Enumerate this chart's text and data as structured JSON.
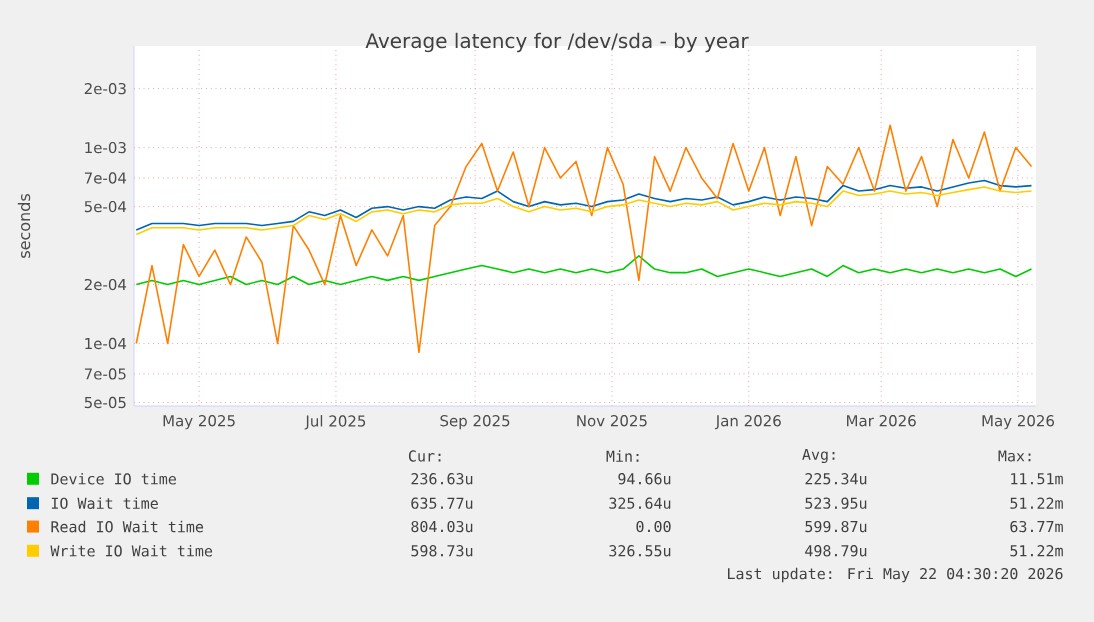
{
  "chart_data": {
    "type": "line",
    "title": "Average latency for /dev/sda - by year",
    "ylabel": "seconds",
    "log": true,
    "grid": true,
    "legend": "bottom",
    "marker": "none",
    "line_style": "solid",
    "xlim": [
      "2025-04-17",
      "2026-05-24"
    ],
    "ylim": [
      4.8e-05,
      0.0033
    ],
    "xticks": [
      {
        "value": "2025-05-16",
        "label": "May 2025"
      },
      {
        "value": "2025-07-16",
        "label": "Jul 2025"
      },
      {
        "value": "2025-09-16",
        "label": "Sep 2025"
      },
      {
        "value": "2025-11-16",
        "label": "Nov 2025"
      },
      {
        "value": "2026-01-16",
        "label": "Jan 2026"
      },
      {
        "value": "2026-03-16",
        "label": "Mar 2026"
      },
      {
        "value": "2026-05-16",
        "label": "May 2026"
      }
    ],
    "yticks": [
      {
        "value": 5e-05,
        "label": "5e-05"
      },
      {
        "value": 7e-05,
        "label": "7e-05"
      },
      {
        "value": 0.0001,
        "label": "1e-04"
      },
      {
        "value": 0.0002,
        "label": "2e-04"
      },
      {
        "value": 0.0005,
        "label": "5e-04"
      },
      {
        "value": 0.0007,
        "label": "7e-04"
      },
      {
        "value": 0.001,
        "label": "1e-03"
      },
      {
        "value": 0.002,
        "label": "2e-03"
      }
    ],
    "x": [
      "2025-04-18",
      "2025-04-25",
      "2025-05-02",
      "2025-05-09",
      "2025-05-16",
      "2025-05-23",
      "2025-05-30",
      "2025-06-06",
      "2025-06-13",
      "2025-06-20",
      "2025-06-27",
      "2025-07-04",
      "2025-07-11",
      "2025-07-18",
      "2025-07-25",
      "2025-08-01",
      "2025-08-08",
      "2025-08-15",
      "2025-08-22",
      "2025-08-29",
      "2025-09-05",
      "2025-09-12",
      "2025-09-19",
      "2025-09-26",
      "2025-10-03",
      "2025-10-10",
      "2025-10-17",
      "2025-10-24",
      "2025-10-31",
      "2025-11-07",
      "2025-11-14",
      "2025-11-21",
      "2025-11-28",
      "2025-12-05",
      "2025-12-12",
      "2025-12-19",
      "2025-12-26",
      "2026-01-02",
      "2026-01-09",
      "2026-01-16",
      "2026-01-23",
      "2026-01-30",
      "2026-02-06",
      "2026-02-13",
      "2026-02-20",
      "2026-02-27",
      "2026-03-06",
      "2026-03-13",
      "2026-03-20",
      "2026-03-27",
      "2026-04-03",
      "2026-04-10",
      "2026-04-17",
      "2026-04-24",
      "2026-05-01",
      "2026-05-08",
      "2026-05-15",
      "2026-05-22"
    ],
    "series": [
      {
        "name": "Device IO time",
        "color": "#00cc00",
        "values": [
          0.0002,
          0.00021,
          0.0002,
          0.00021,
          0.0002,
          0.00021,
          0.00022,
          0.0002,
          0.00021,
          0.0002,
          0.00022,
          0.0002,
          0.00021,
          0.0002,
          0.00021,
          0.00022,
          0.00021,
          0.00022,
          0.00021,
          0.00022,
          0.00023,
          0.00024,
          0.00025,
          0.00024,
          0.00023,
          0.00024,
          0.00023,
          0.00024,
          0.00023,
          0.00024,
          0.00023,
          0.00024,
          0.00028,
          0.00024,
          0.00023,
          0.00023,
          0.00024,
          0.00022,
          0.00023,
          0.00024,
          0.00023,
          0.00022,
          0.00023,
          0.00024,
          0.00022,
          0.00025,
          0.00023,
          0.00024,
          0.00023,
          0.00024,
          0.00023,
          0.00024,
          0.00023,
          0.00024,
          0.00023,
          0.00024,
          0.00022,
          0.00024
        ]
      },
      {
        "name": "IO Wait time",
        "color": "#0066b3",
        "values": [
          0.00038,
          0.00041,
          0.00041,
          0.00041,
          0.0004,
          0.00041,
          0.00041,
          0.00041,
          0.0004,
          0.00041,
          0.00042,
          0.00047,
          0.00045,
          0.00048,
          0.00044,
          0.00049,
          0.0005,
          0.00048,
          0.0005,
          0.00049,
          0.00054,
          0.00056,
          0.00055,
          0.0006,
          0.00053,
          0.0005,
          0.00053,
          0.00051,
          0.00052,
          0.0005,
          0.00053,
          0.00054,
          0.00058,
          0.00055,
          0.00053,
          0.00055,
          0.00054,
          0.00056,
          0.00051,
          0.00053,
          0.00056,
          0.00054,
          0.00056,
          0.00055,
          0.00053,
          0.00064,
          0.0006,
          0.00061,
          0.00064,
          0.00062,
          0.00063,
          0.0006,
          0.00063,
          0.00066,
          0.00068,
          0.00064,
          0.00063,
          0.00064
        ]
      },
      {
        "name": "Read IO Wait time",
        "color": "#ff8000",
        "values": [
          0.0001,
          0.00025,
          0.0001,
          0.00032,
          0.00022,
          0.0003,
          0.0002,
          0.00035,
          0.00026,
          0.0001,
          0.0004,
          0.0003,
          0.0002,
          0.00045,
          0.00025,
          0.00038,
          0.00028,
          0.00045,
          9e-05,
          0.0004,
          0.0005,
          0.0008,
          0.00105,
          0.0006,
          0.00095,
          0.0005,
          0.001,
          0.0007,
          0.00085,
          0.00045,
          0.001,
          0.00065,
          0.00021,
          0.0009,
          0.0006,
          0.001,
          0.0007,
          0.00055,
          0.00105,
          0.0006,
          0.001,
          0.00045,
          0.0009,
          0.0004,
          0.0008,
          0.00065,
          0.001,
          0.0006,
          0.0013,
          0.0006,
          0.0009,
          0.0005,
          0.0011,
          0.0007,
          0.0012,
          0.0006,
          0.001,
          0.0008
        ]
      },
      {
        "name": "Write IO Wait time",
        "color": "#ffcc00",
        "values": [
          0.00036,
          0.00039,
          0.00039,
          0.00039,
          0.00038,
          0.00039,
          0.00039,
          0.00039,
          0.00038,
          0.00039,
          0.0004,
          0.00045,
          0.00043,
          0.00046,
          0.00042,
          0.00047,
          0.00048,
          0.00046,
          0.00048,
          0.00047,
          0.00051,
          0.00052,
          0.00052,
          0.00055,
          0.0005,
          0.00047,
          0.0005,
          0.00048,
          0.00049,
          0.00047,
          0.0005,
          0.00051,
          0.00054,
          0.00052,
          0.0005,
          0.00052,
          0.00051,
          0.00053,
          0.00048,
          0.0005,
          0.00052,
          0.00051,
          0.00053,
          0.00052,
          0.0005,
          0.0006,
          0.00057,
          0.00058,
          0.0006,
          0.00058,
          0.00059,
          0.00057,
          0.00059,
          0.00061,
          0.00063,
          0.0006,
          0.00059,
          0.0006
        ]
      }
    ],
    "annotations": [
      "Cur:",
      "Min:",
      "Avg:",
      "Max:",
      "236.63u",
      "94.66u",
      "225.34u",
      "11.51m",
      "635.77u",
      "325.64u",
      "523.95u",
      "51.22m",
      "804.03u",
      "0.00",
      "599.87u",
      "63.77m",
      "598.73u",
      "326.55u",
      "498.79u",
      "51.22m",
      "Last update: Fri May 22 04:30:20 2026"
    ]
  }
}
